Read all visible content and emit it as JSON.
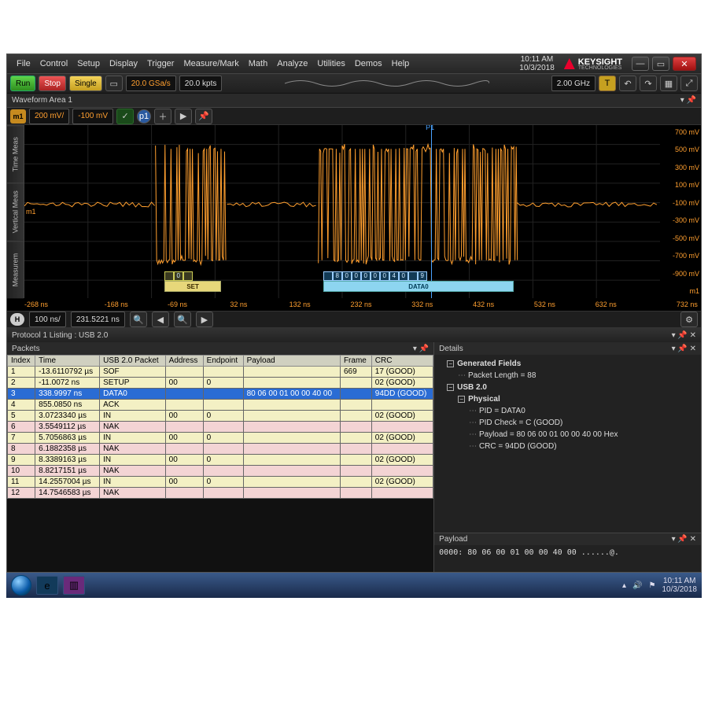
{
  "menubar": {
    "items": [
      "File",
      "Control",
      "Setup",
      "Display",
      "Trigger",
      "Measure/Mark",
      "Math",
      "Analyze",
      "Utilities",
      "Demos",
      "Help"
    ]
  },
  "clock": {
    "time": "10:11 AM",
    "date": "10/3/2018"
  },
  "brand": {
    "name": "KEYSIGHT",
    "sub": "TECHNOLOGIES"
  },
  "toolbar": {
    "run": "Run",
    "stop": "Stop",
    "single": "Single",
    "sample_rate": "20.0 GSa/s",
    "mem_depth": "20.0 kpts",
    "bandwidth": "2.00 GHz",
    "trig_badge": "T"
  },
  "waveform_area": {
    "title": "Waveform Area 1",
    "channel_badge": "m1",
    "vdiv": "200 mV/",
    "offset": "-100 mV",
    "probe_badge": "p1"
  },
  "plot": {
    "y_ticks": [
      "700 mV",
      "500 mV",
      "300 mV",
      "100 mV",
      "-100 mV",
      "-300 mV",
      "-500 mV",
      "-700 mV",
      "-900 mV"
    ],
    "x_ticks": [
      "-268 ns",
      "-168 ns",
      "-69 ns",
      "32 ns",
      "132 ns",
      "232 ns",
      "332 ns",
      "432 ns",
      "532 ns",
      "632 ns",
      "732 ns"
    ],
    "x_unit_right": "m1",
    "marker": {
      "label": "P1",
      "pos_pct": 64
    },
    "m_label": "m1",
    "decode_set": {
      "left_pct": 22,
      "width_pct": 9,
      "cells": [
        "",
        "0",
        ""
      ],
      "label": "SET"
    },
    "decode_data": {
      "left_pct": 47,
      "width_pct": 30,
      "cells": [
        "",
        "8",
        "0",
        "0",
        "0",
        "0",
        "0",
        "4",
        "0",
        "",
        "9"
      ],
      "label": "DATA0"
    }
  },
  "horiz": {
    "badge": "H",
    "tdiv": "100 ns/",
    "delay": "231.5221 ns"
  },
  "sidetabs": [
    "Time Meas",
    "Vertical Meas",
    "Measurem"
  ],
  "protocol": {
    "title": "Protocol 1 Listing : USB 2.0",
    "packets_title": "Packets",
    "details_title": "Details",
    "payload_title": "Payload"
  },
  "columns": [
    "Index",
    "Time",
    "USB 2.0 Packet",
    "Address",
    "Endpoint",
    "Payload",
    "Frame",
    "CRC"
  ],
  "rows": [
    {
      "c": "y",
      "sel": false,
      "cells": [
        "1",
        "-13.6110792 µs",
        "SOF",
        "",
        "",
        "",
        "669",
        "17 (GOOD)"
      ]
    },
    {
      "c": "y",
      "sel": false,
      "cells": [
        "2",
        "-11.0072 ns",
        "SETUP",
        "00",
        "0",
        "",
        "",
        "02 (GOOD)"
      ]
    },
    {
      "c": "y",
      "sel": true,
      "cells": [
        "3",
        "338.9997 ns",
        "DATA0",
        "",
        "",
        "80 06 00 01 00 00 40 00",
        "",
        "94DD (GOOD)"
      ]
    },
    {
      "c": "y",
      "sel": false,
      "cells": [
        "4",
        "855.0850 ns",
        "ACK",
        "",
        "",
        "",
        "",
        ""
      ]
    },
    {
      "c": "y",
      "sel": false,
      "cells": [
        "5",
        "3.0723340 µs",
        "IN",
        "00",
        "0",
        "",
        "",
        "02 (GOOD)"
      ]
    },
    {
      "c": "p",
      "sel": false,
      "cells": [
        "6",
        "3.5549112 µs",
        "NAK",
        "",
        "",
        "",
        "",
        ""
      ]
    },
    {
      "c": "y",
      "sel": false,
      "cells": [
        "7",
        "5.7056863 µs",
        "IN",
        "00",
        "0",
        "",
        "",
        "02 (GOOD)"
      ]
    },
    {
      "c": "p",
      "sel": false,
      "cells": [
        "8",
        "6.1882358 µs",
        "NAK",
        "",
        "",
        "",
        "",
        ""
      ]
    },
    {
      "c": "y",
      "sel": false,
      "cells": [
        "9",
        "8.3389163 µs",
        "IN",
        "00",
        "0",
        "",
        "",
        "02 (GOOD)"
      ]
    },
    {
      "c": "p",
      "sel": false,
      "cells": [
        "10",
        "8.8217151 µs",
        "NAK",
        "",
        "",
        "",
        "",
        ""
      ]
    },
    {
      "c": "y",
      "sel": false,
      "cells": [
        "11",
        "14.2557004 µs",
        "IN",
        "00",
        "0",
        "",
        "",
        "02 (GOOD)"
      ]
    },
    {
      "c": "p",
      "sel": false,
      "cells": [
        "12",
        "14.7546583 µs",
        "NAK",
        "",
        "",
        "",
        "",
        ""
      ]
    }
  ],
  "details": {
    "generated_fields": "Generated Fields",
    "packet_length": "Packet Length = 88",
    "usb20": "USB 2.0",
    "physical": "Physical",
    "pid": "PID = DATA0",
    "pid_check": "PID Check = C (GOOD)",
    "payload": "Payload = 80 06 00 01 00 00 40 00 Hex",
    "crc": "CRC = 94DD (GOOD)"
  },
  "payload_hex": "0000:  80 06 00 01 00 00 40 00   ......@.",
  "taskbar": {
    "time": "10:11 AM",
    "date": "10/3/2018"
  },
  "colors": {
    "trace": "#ff9f2f",
    "bg": "#000000"
  }
}
